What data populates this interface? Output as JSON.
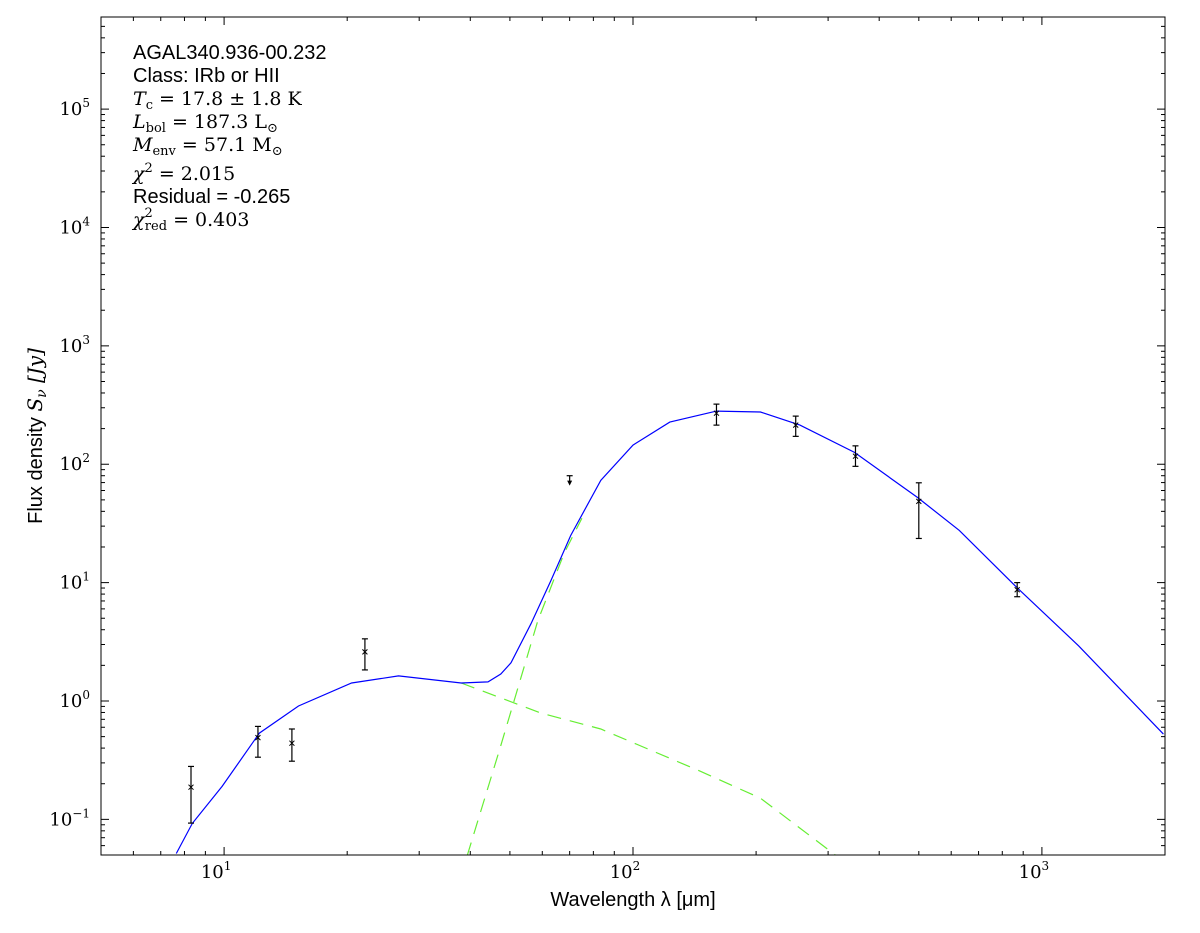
{
  "chart_data": {
    "type": "scatter",
    "xscale": "log",
    "yscale": "log",
    "xlim": [
      5,
      2000
    ],
    "ylim": [
      0.05,
      600000
    ],
    "xlabel": "Wavelength λ [μm]",
    "ylabel_prefix": "Flux density ",
    "ylabel_math": "S",
    "ylabel_sub": "ν",
    "ylabel_suffix": " [Jy]",
    "x_ticks": [
      {
        "value": 10,
        "base": "10",
        "exp": "1"
      },
      {
        "value": 100,
        "base": "10",
        "exp": "2"
      },
      {
        "value": 1000,
        "base": "10",
        "exp": "3"
      }
    ],
    "y_ticks": [
      {
        "value": 0.1,
        "base": "10",
        "exp": "−1"
      },
      {
        "value": 1,
        "base": "10",
        "exp": "0"
      },
      {
        "value": 10,
        "base": "10",
        "exp": "1"
      },
      {
        "value": 100,
        "base": "10",
        "exp": "2"
      },
      {
        "value": 1000,
        "base": "10",
        "exp": "3"
      },
      {
        "value": 10000,
        "base": "10",
        "exp": "4"
      },
      {
        "value": 100000,
        "base": "10",
        "exp": "5"
      }
    ],
    "annotation": {
      "source": "AGAL340.936-00.232",
      "class": "Class: IRb or HII",
      "tc": {
        "sym": "T",
        "sub": "c",
        "rest": " = 17.8 ± 1.8 K"
      },
      "lbol": {
        "sym": "L",
        "sub": "bol",
        "rest": " = 187.3 L",
        "unit_sub": "⊙"
      },
      "menv": {
        "sym": "M",
        "sub": "env",
        "rest": " = 57.1 M",
        "unit_sub": "⊙"
      },
      "chi2": {
        "sym": "χ",
        "sup": "2",
        "rest": " = 2.015"
      },
      "residual": "Residual = -0.265",
      "chi2red": {
        "sym": "χ",
        "sup": "2",
        "sub": "red",
        "rest": " = 0.403"
      }
    },
    "points": [
      {
        "x": 8.3,
        "y": 0.187,
        "lo": 0.093,
        "hi": 0.28
      },
      {
        "x": 12.1,
        "y": 0.49,
        "lo": 0.335,
        "hi": 0.61
      },
      {
        "x": 14.65,
        "y": 0.44,
        "lo": 0.31,
        "hi": 0.58
      },
      {
        "x": 22.1,
        "y": 2.6,
        "lo": 1.83,
        "hi": 3.35
      },
      {
        "x": 160,
        "y": 270,
        "lo": 214,
        "hi": 322
      },
      {
        "x": 250,
        "y": 214,
        "lo": 172,
        "hi": 255
      },
      {
        "x": 350,
        "y": 117,
        "lo": 96,
        "hi": 143
      },
      {
        "x": 500,
        "y": 48.6,
        "lo": 23.6,
        "hi": 69.7
      },
      {
        "x": 870,
        "y": 8.7,
        "lo": 7.6,
        "hi": 10.0
      }
    ],
    "upper_limits": [
      {
        "x": 70,
        "y": 70,
        "cap": 80
      }
    ],
    "series": [
      {
        "name": "total-fit",
        "color": "#0000ff",
        "dashed": false,
        "x": [
          7.64,
          8.36,
          9.89,
          12.2,
          15.2,
          20.5,
          26.7,
          38.0,
          44.2,
          47.5,
          50.3,
          56.3,
          63.0,
          70.4,
          83.4,
          100,
          123,
          160,
          205,
          256,
          348,
          496,
          628,
          859,
          1230,
          1982
        ],
        "y": [
          0.0515,
          0.0925,
          0.19,
          0.536,
          0.907,
          1.42,
          1.63,
          1.42,
          1.45,
          1.69,
          2.1,
          4.5,
          10.4,
          25.0,
          73.1,
          145,
          227,
          281,
          276,
          214,
          126,
          52.5,
          27.6,
          9.44,
          2.92,
          0.525
        ]
      },
      {
        "name": "hot-component",
        "color": "#66ee33",
        "dashed": true,
        "x": [
          38.0,
          59.6,
          83.4,
          146,
          205,
          316
        ],
        "y": [
          1.42,
          0.79,
          0.58,
          0.255,
          0.151,
          0.0486
        ]
      },
      {
        "name": "cold-component",
        "color": "#66ee33",
        "dashed": true,
        "x": [
          39.3,
          47.5,
          58.5,
          67.8,
          75
        ],
        "y": [
          0.049,
          0.42,
          4.76,
          17.6,
          35
        ]
      }
    ]
  }
}
